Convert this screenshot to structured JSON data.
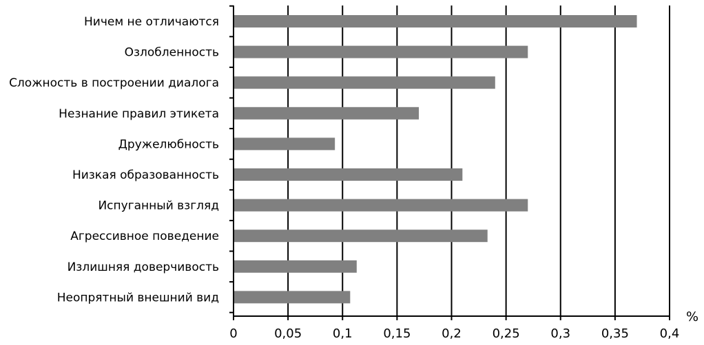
{
  "chart_data": {
    "type": "bar",
    "orientation": "horizontal",
    "categories": [
      "Ничем не отличаются",
      "Озлобленность",
      "Сложность в построении диалога",
      "Незнание правил этикета",
      "Дружелюбность",
      "Низкая образованность",
      "Испуганный взгляд",
      "Агрессивное поведение",
      "Излишняя доверчивость",
      "Неопрятный внешний вид"
    ],
    "values": [
      0.37,
      0.27,
      0.24,
      0.17,
      0.093,
      0.21,
      0.27,
      0.233,
      0.113,
      0.107
    ],
    "xlabel": "%",
    "xlim": [
      0,
      0.4
    ],
    "xticks": [
      0,
      0.05,
      0.1,
      0.15,
      0.2,
      0.25,
      0.3,
      0.35,
      0.4
    ],
    "xtick_labels": [
      "0",
      "0,05",
      "0,1",
      "0,15",
      "0,2",
      "0,25",
      "0,3",
      "0,35",
      "0,4"
    ],
    "grid": "vertical",
    "bar_color": "#808080",
    "grid_color": "#000000"
  }
}
